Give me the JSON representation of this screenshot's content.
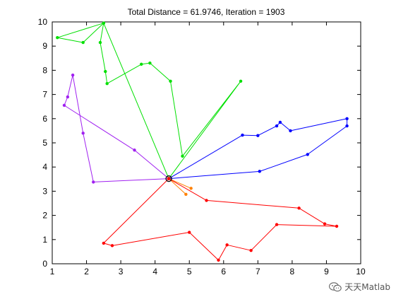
{
  "chart_data": {
    "type": "line",
    "title": "Total Distance = 61.9746, Iteration = 1903",
    "xlabel": "",
    "ylabel": "",
    "xlim": [
      1,
      10
    ],
    "ylim": [
      0,
      10
    ],
    "xticks": [
      1,
      2,
      3,
      4,
      5,
      6,
      7,
      8,
      9,
      10
    ],
    "yticks": [
      0,
      1,
      2,
      3,
      4,
      5,
      6,
      7,
      8,
      9,
      10
    ],
    "grid": false,
    "depot": {
      "x": 4.4,
      "y": 3.52,
      "color": "#000000",
      "marker": "circle"
    },
    "series": [
      {
        "color": "#00e000",
        "marker": "dot",
        "x": [
          4.4,
          6.5,
          4.8,
          4.45,
          3.85,
          3.6,
          2.6,
          2.55,
          2.4,
          2.5,
          1.9,
          1.15,
          2.5,
          4.4
        ],
        "y": [
          3.52,
          7.55,
          4.45,
          7.55,
          8.3,
          8.25,
          7.45,
          7.95,
          9.15,
          9.95,
          9.15,
          9.35,
          9.95,
          3.52
        ]
      },
      {
        "color": "#0000ff",
        "marker": "dot",
        "x": [
          4.4,
          7.05,
          8.45,
          9.6,
          9.6,
          7.95,
          7.65,
          7.55,
          7.0,
          6.55,
          4.4
        ],
        "y": [
          3.52,
          3.82,
          4.52,
          5.7,
          6.0,
          5.5,
          5.85,
          5.7,
          5.3,
          5.32,
          3.52
        ]
      },
      {
        "color": "#a020f0",
        "marker": "dot",
        "x": [
          4.4,
          2.2,
          1.9,
          1.6,
          1.45,
          1.35,
          3.4,
          4.4
        ],
        "y": [
          3.52,
          3.38,
          5.4,
          7.8,
          6.9,
          6.55,
          4.7,
          3.52
        ]
      },
      {
        "color": "#ff8000",
        "marker": "dot",
        "x": [
          4.4,
          5.05,
          4.4,
          4.9,
          4.4
        ],
        "y": [
          3.52,
          3.12,
          3.52,
          2.87,
          3.52
        ]
      },
      {
        "color": "#ff0000",
        "marker": "dot",
        "x": [
          4.4,
          5.5,
          8.2,
          8.95,
          9.3,
          7.55,
          6.8,
          6.1,
          5.85,
          5.0,
          2.75,
          2.5,
          4.4
        ],
        "y": [
          3.52,
          2.62,
          2.3,
          1.65,
          1.55,
          1.62,
          0.55,
          0.78,
          0.15,
          1.3,
          0.75,
          0.85,
          3.52
        ]
      }
    ]
  },
  "watermark": {
    "text": "天天Matlab",
    "icon": "wechat-icon"
  }
}
